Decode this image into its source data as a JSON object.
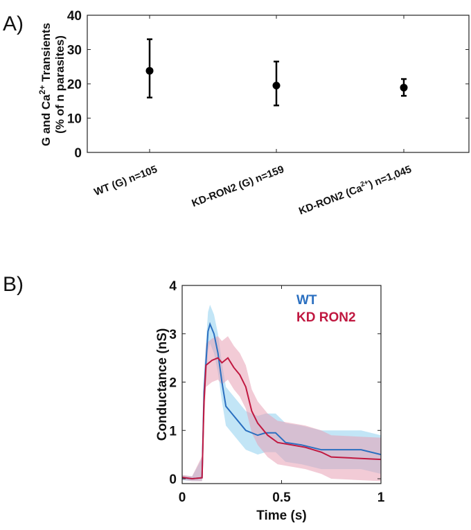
{
  "chart_data": [
    {
      "panel_label": "A)",
      "type": "scatter",
      "ylabel": "G and Ca2+ Transients",
      "ylabel_sup": "2+",
      "ylabel_line2": "(% of n parasites)",
      "ylim": [
        0,
        40
      ],
      "yticks": [
        0,
        10,
        20,
        30,
        40
      ],
      "categories": [
        "WT (G) n=105",
        "KD-RON2 (G) n=159",
        "KD-RON2 (Ca2+) n=1,045"
      ],
      "category_parts": [
        [
          "WT (G) n=105",
          "",
          ""
        ],
        [
          "KD-RON2 (G) n=159",
          "",
          ""
        ],
        [
          "KD-RON2 (Ca",
          "2+",
          ") n=1,045"
        ]
      ],
      "values": [
        23.8,
        19.5,
        18.9
      ],
      "err_low": [
        16.0,
        13.7,
        16.5
      ],
      "err_high": [
        33.0,
        26.5,
        21.4
      ]
    },
    {
      "panel_label": "B)",
      "type": "line",
      "xlabel": "Time (s)",
      "ylabel": "Conductance (nS)",
      "xlim": [
        0,
        1
      ],
      "ylim": [
        -0.1,
        4
      ],
      "xticks": [
        "0",
        "0.5",
        "1"
      ],
      "yticks": [
        "0",
        "1",
        "2",
        "3",
        "4"
      ],
      "series": [
        {
          "name": "WT",
          "color": "#2a6fc0",
          "band_color": "#8fd0ee",
          "x": [
            0,
            0.05,
            0.1,
            0.11,
            0.13,
            0.14,
            0.16,
            0.18,
            0.2,
            0.22,
            0.25,
            0.28,
            0.32,
            0.38,
            0.42,
            0.47,
            0.52,
            0.6,
            0.7,
            0.8,
            0.9,
            1.0
          ],
          "y": [
            0.02,
            0.0,
            0.02,
            1.8,
            3.05,
            3.2,
            3.0,
            2.6,
            2.0,
            1.5,
            1.35,
            1.2,
            1.0,
            0.9,
            0.95,
            0.95,
            0.75,
            0.7,
            0.6,
            0.6,
            0.6,
            0.5
          ],
          "band": 0.4
        },
        {
          "name": "KD RON2",
          "color": "#c01840",
          "band_color": "#e8a0b4",
          "x": [
            0,
            0.05,
            0.1,
            0.11,
            0.12,
            0.15,
            0.18,
            0.2,
            0.23,
            0.26,
            0.29,
            0.32,
            0.35,
            0.38,
            0.43,
            0.48,
            0.55,
            0.62,
            0.7,
            0.75,
            0.85,
            1.0
          ],
          "y": [
            0.03,
            0.0,
            0.02,
            1.6,
            2.35,
            2.45,
            2.5,
            2.4,
            2.5,
            2.3,
            2.15,
            1.9,
            1.4,
            1.15,
            0.9,
            0.75,
            0.7,
            0.65,
            0.55,
            0.45,
            0.43,
            0.4
          ],
          "band": 0.45
        }
      ]
    }
  ]
}
